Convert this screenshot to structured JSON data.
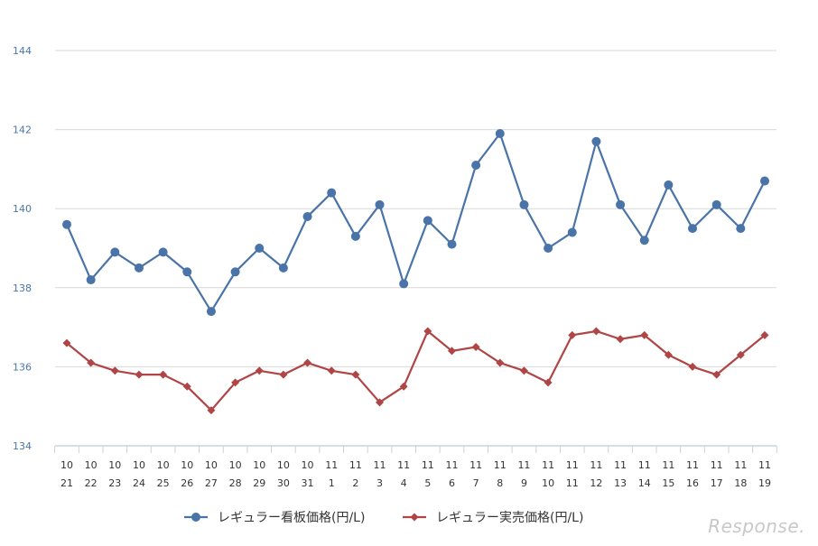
{
  "chart_data": {
    "type": "line",
    "title": "",
    "xlabel": "",
    "ylabel": "",
    "ylim": [
      134,
      144
    ],
    "yticks": [
      134,
      136,
      138,
      140,
      142,
      144
    ],
    "grid": true,
    "legend_position": "bottom",
    "categories": [
      [
        "10",
        "21"
      ],
      [
        "10",
        "22"
      ],
      [
        "10",
        "23"
      ],
      [
        "10",
        "24"
      ],
      [
        "10",
        "25"
      ],
      [
        "10",
        "26"
      ],
      [
        "10",
        "27"
      ],
      [
        "10",
        "28"
      ],
      [
        "10",
        "29"
      ],
      [
        "10",
        "30"
      ],
      [
        "10",
        "31"
      ],
      [
        "11",
        "1"
      ],
      [
        "11",
        "2"
      ],
      [
        "11",
        "3"
      ],
      [
        "11",
        "4"
      ],
      [
        "11",
        "5"
      ],
      [
        "11",
        "6"
      ],
      [
        "11",
        "7"
      ],
      [
        "11",
        "8"
      ],
      [
        "11",
        "9"
      ],
      [
        "11",
        "10"
      ],
      [
        "11",
        "11"
      ],
      [
        "11",
        "12"
      ],
      [
        "11",
        "13"
      ],
      [
        "11",
        "14"
      ],
      [
        "11",
        "15"
      ],
      [
        "11",
        "16"
      ],
      [
        "11",
        "17"
      ],
      [
        "11",
        "18"
      ],
      [
        "11",
        "19"
      ]
    ],
    "series": [
      {
        "name": "レギュラー看板価格(円/L)",
        "color": "#4a74a8",
        "marker": "circle",
        "values": [
          139.6,
          138.2,
          138.9,
          138.5,
          138.9,
          138.4,
          137.4,
          138.4,
          139.0,
          138.5,
          139.8,
          140.4,
          139.3,
          140.1,
          138.1,
          139.7,
          139.1,
          141.1,
          141.9,
          140.1,
          139.0,
          139.4,
          141.7,
          140.1,
          139.2,
          140.6,
          139.5,
          140.1,
          139.5,
          140.7
        ]
      },
      {
        "name": "レギュラー実売価格(円/L)",
        "color": "#b04545",
        "marker": "diamond",
        "values": [
          136.6,
          136.1,
          135.9,
          135.8,
          135.8,
          135.5,
          134.9,
          135.6,
          135.9,
          135.8,
          136.1,
          135.9,
          135.8,
          135.1,
          135.5,
          136.9,
          136.4,
          136.5,
          136.1,
          135.9,
          135.6,
          136.8,
          136.9,
          136.7,
          136.8,
          136.3,
          136.0,
          135.8,
          136.3,
          136.8
        ]
      }
    ]
  },
  "watermark": {
    "text": "Response."
  }
}
